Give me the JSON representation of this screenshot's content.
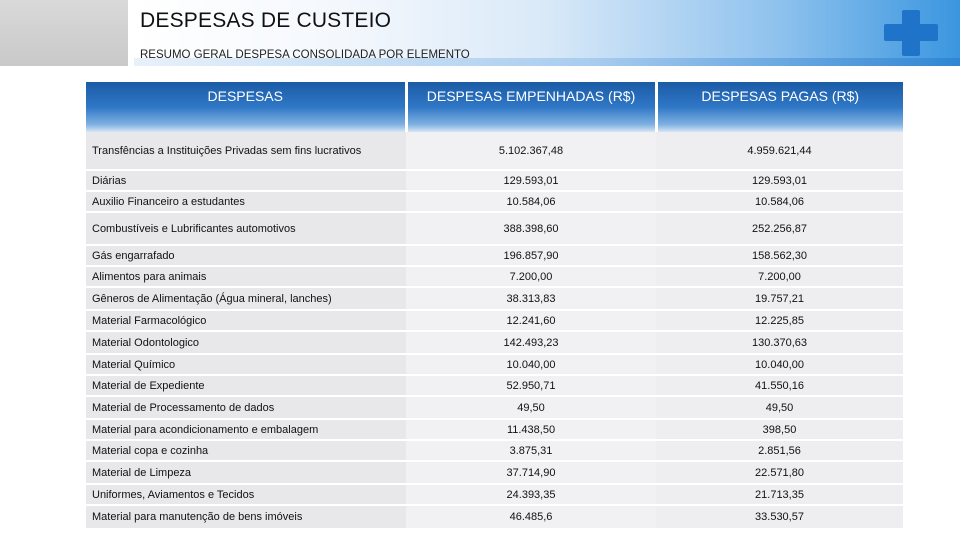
{
  "header": {
    "title": "DESPESAS DE CUSTEIO",
    "subtitle": "RESUMO GERAL DESPESA CONSOLIDADA POR ELEMENTO"
  },
  "table": {
    "columns": [
      "DESPESAS",
      "DESPESAS EMPENHADAS (R$)",
      "DESPESAS PAGAS (R$)"
    ],
    "rows": [
      [
        "Transfências a Instituições Privadas sem fins lucrativos",
        "5.102.367,48",
        "4.959.621,44"
      ],
      [
        "Diárias",
        "129.593,01",
        "129.593,01"
      ],
      [
        "Auxilio Financeiro a estudantes",
        "10.584,06",
        "10.584,06"
      ],
      [
        "Combustíveis e Lubrificantes automotivos",
        "388.398,60",
        "252.256,87"
      ],
      [
        "Gás engarrafado",
        "196.857,90",
        "158.562,30"
      ],
      [
        "Alimentos para animais",
        "7.200,00",
        "7.200,00"
      ],
      [
        "Gêneros de Alimentação (Água mineral, lanches)",
        "38.313,83",
        "19.757,21"
      ],
      [
        "Material Farmacológico",
        "12.241,60",
        "12.225,85"
      ],
      [
        "Material Odontologico",
        "142.493,23",
        "130.370,63"
      ],
      [
        "Material Químico",
        "10.040,00",
        "10.040,00"
      ],
      [
        "Material de Expediente",
        "52.950,71",
        "41.550,16"
      ],
      [
        "Material de Processamento de dados",
        "49,50",
        "49,50"
      ],
      [
        "Material para acondicionamento e embalagem",
        "11.438,50",
        "398,50"
      ],
      [
        "Material copa e cozinha",
        "3.875,31",
        "2.851,56"
      ],
      [
        "Material de Limpeza",
        "37.714,90",
        "22.571,80"
      ],
      [
        "Uniformes, Aviamentos e Tecidos",
        "24.393,35",
        "21.713,35"
      ],
      [
        "Material para manutenção de bens imóveis",
        "46.485,6",
        "33.530,57"
      ]
    ]
  },
  "colors": {
    "header_blue": "#1b5ba6",
    "cross_blue": "#1f73c8",
    "row_gray": "#e8e8ea"
  },
  "icons": {
    "logo": "plus-cross-icon"
  }
}
